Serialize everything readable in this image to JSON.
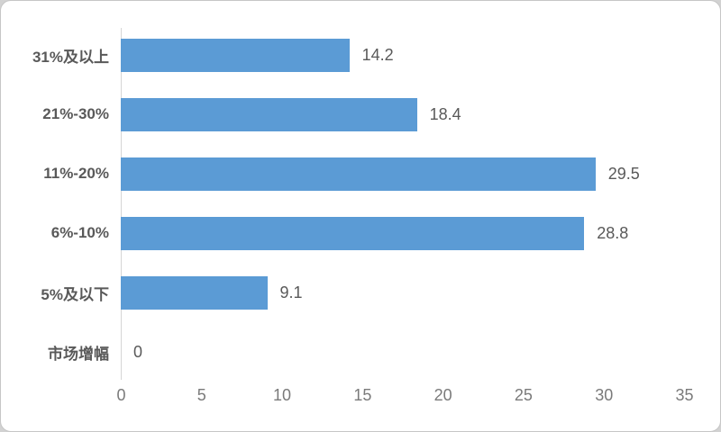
{
  "chart_data": {
    "type": "bar",
    "orientation": "horizontal",
    "categories": [
      "31%及以上",
      "21%-30%",
      "11%-20%",
      "6%-10%",
      "5%及以下",
      "市场增幅"
    ],
    "values": [
      14.2,
      18.4,
      29.5,
      28.8,
      9.1,
      0
    ],
    "data_labels": [
      "14.2",
      "18.4",
      "29.5",
      "28.8",
      "9.1",
      "0"
    ],
    "x_ticks": [
      "0",
      "5",
      "10",
      "15",
      "20",
      "25",
      "30",
      "35"
    ],
    "xlim": [
      0,
      35
    ],
    "title": "",
    "xlabel": "",
    "ylabel": "",
    "grid": false,
    "legend": "none",
    "bar_color": "#5B9BD5",
    "category_label_color": "#595959",
    "value_label_color": "#595959",
    "tick_label_color": "#7a7a7a",
    "axis_line_color": "#d6d6d6"
  }
}
